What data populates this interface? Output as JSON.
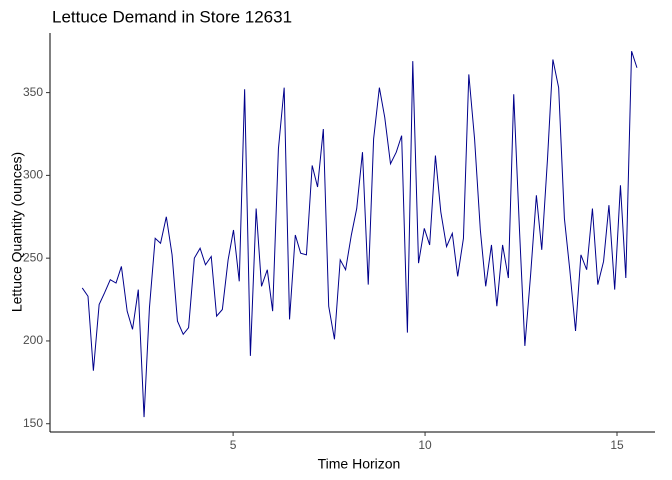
{
  "chart_data": {
    "type": "line",
    "title": "Lettuce Demand in Store 12631",
    "x_label": "Time Horizon",
    "y_label": "Lettuce Quantity (ounces)",
    "x": [
      1.07,
      1.22,
      1.36,
      1.51,
      1.65,
      1.8,
      1.95,
      2.09,
      2.24,
      2.38,
      2.53,
      2.68,
      2.82,
      2.97,
      3.11,
      3.26,
      3.41,
      3.55,
      3.7,
      3.84,
      3.99,
      4.14,
      4.28,
      4.43,
      4.57,
      4.72,
      4.87,
      5.01,
      5.16,
      5.3,
      5.45,
      5.6,
      5.74,
      5.89,
      6.03,
      6.18,
      6.33,
      6.47,
      6.62,
      6.76,
      6.91,
      7.06,
      7.2,
      7.35,
      7.49,
      7.64,
      7.79,
      7.93,
      8.08,
      8.22,
      8.37,
      8.52,
      8.66,
      8.81,
      8.95,
      9.1,
      9.25,
      9.39,
      9.54,
      9.68,
      9.83,
      9.98,
      10.12,
      10.27,
      10.41,
      10.56,
      10.71,
      10.85,
      11.0,
      11.14,
      11.29,
      11.44,
      11.58,
      11.73,
      11.87,
      12.02,
      12.17,
      12.31,
      12.46,
      12.6,
      12.75,
      12.9,
      13.04,
      13.19,
      13.33,
      13.48,
      13.63,
      13.77,
      13.92,
      14.06,
      14.21,
      14.36,
      14.5,
      14.65,
      14.79,
      14.94,
      15.09,
      15.23,
      15.38,
      15.52
    ],
    "series": [
      {
        "color": "#00008b",
        "values": [
          232,
          227,
          182,
          222,
          229,
          237,
          235,
          245,
          218,
          207,
          231,
          154,
          220,
          262,
          259,
          275,
          252,
          212,
          204,
          208,
          250,
          256,
          246,
          251,
          215,
          219,
          249,
          267,
          236,
          352,
          191,
          280,
          233,
          243,
          218,
          316,
          353,
          213,
          264,
          253,
          252,
          306,
          293,
          328,
          221,
          201,
          249,
          243,
          264,
          280,
          314,
          234,
          322,
          353,
          335,
          307,
          314,
          324,
          205,
          369,
          247,
          268,
          258,
          312,
          278,
          257,
          265,
          239,
          262,
          361,
          322,
          267,
          233,
          258,
          221,
          258,
          238,
          349,
          267,
          197,
          240,
          288,
          255,
          310,
          370,
          353,
          274,
          243,
          206,
          252,
          243,
          280,
          234,
          248,
          282,
          231,
          294,
          238,
          375,
          365
        ]
      }
    ],
    "xlim": [
      0.23,
      15.99
    ],
    "xticks": [
      5,
      10,
      15
    ],
    "ylim": [
      145,
      386
    ],
    "yticks": [
      150,
      200,
      250,
      300,
      350
    ]
  }
}
